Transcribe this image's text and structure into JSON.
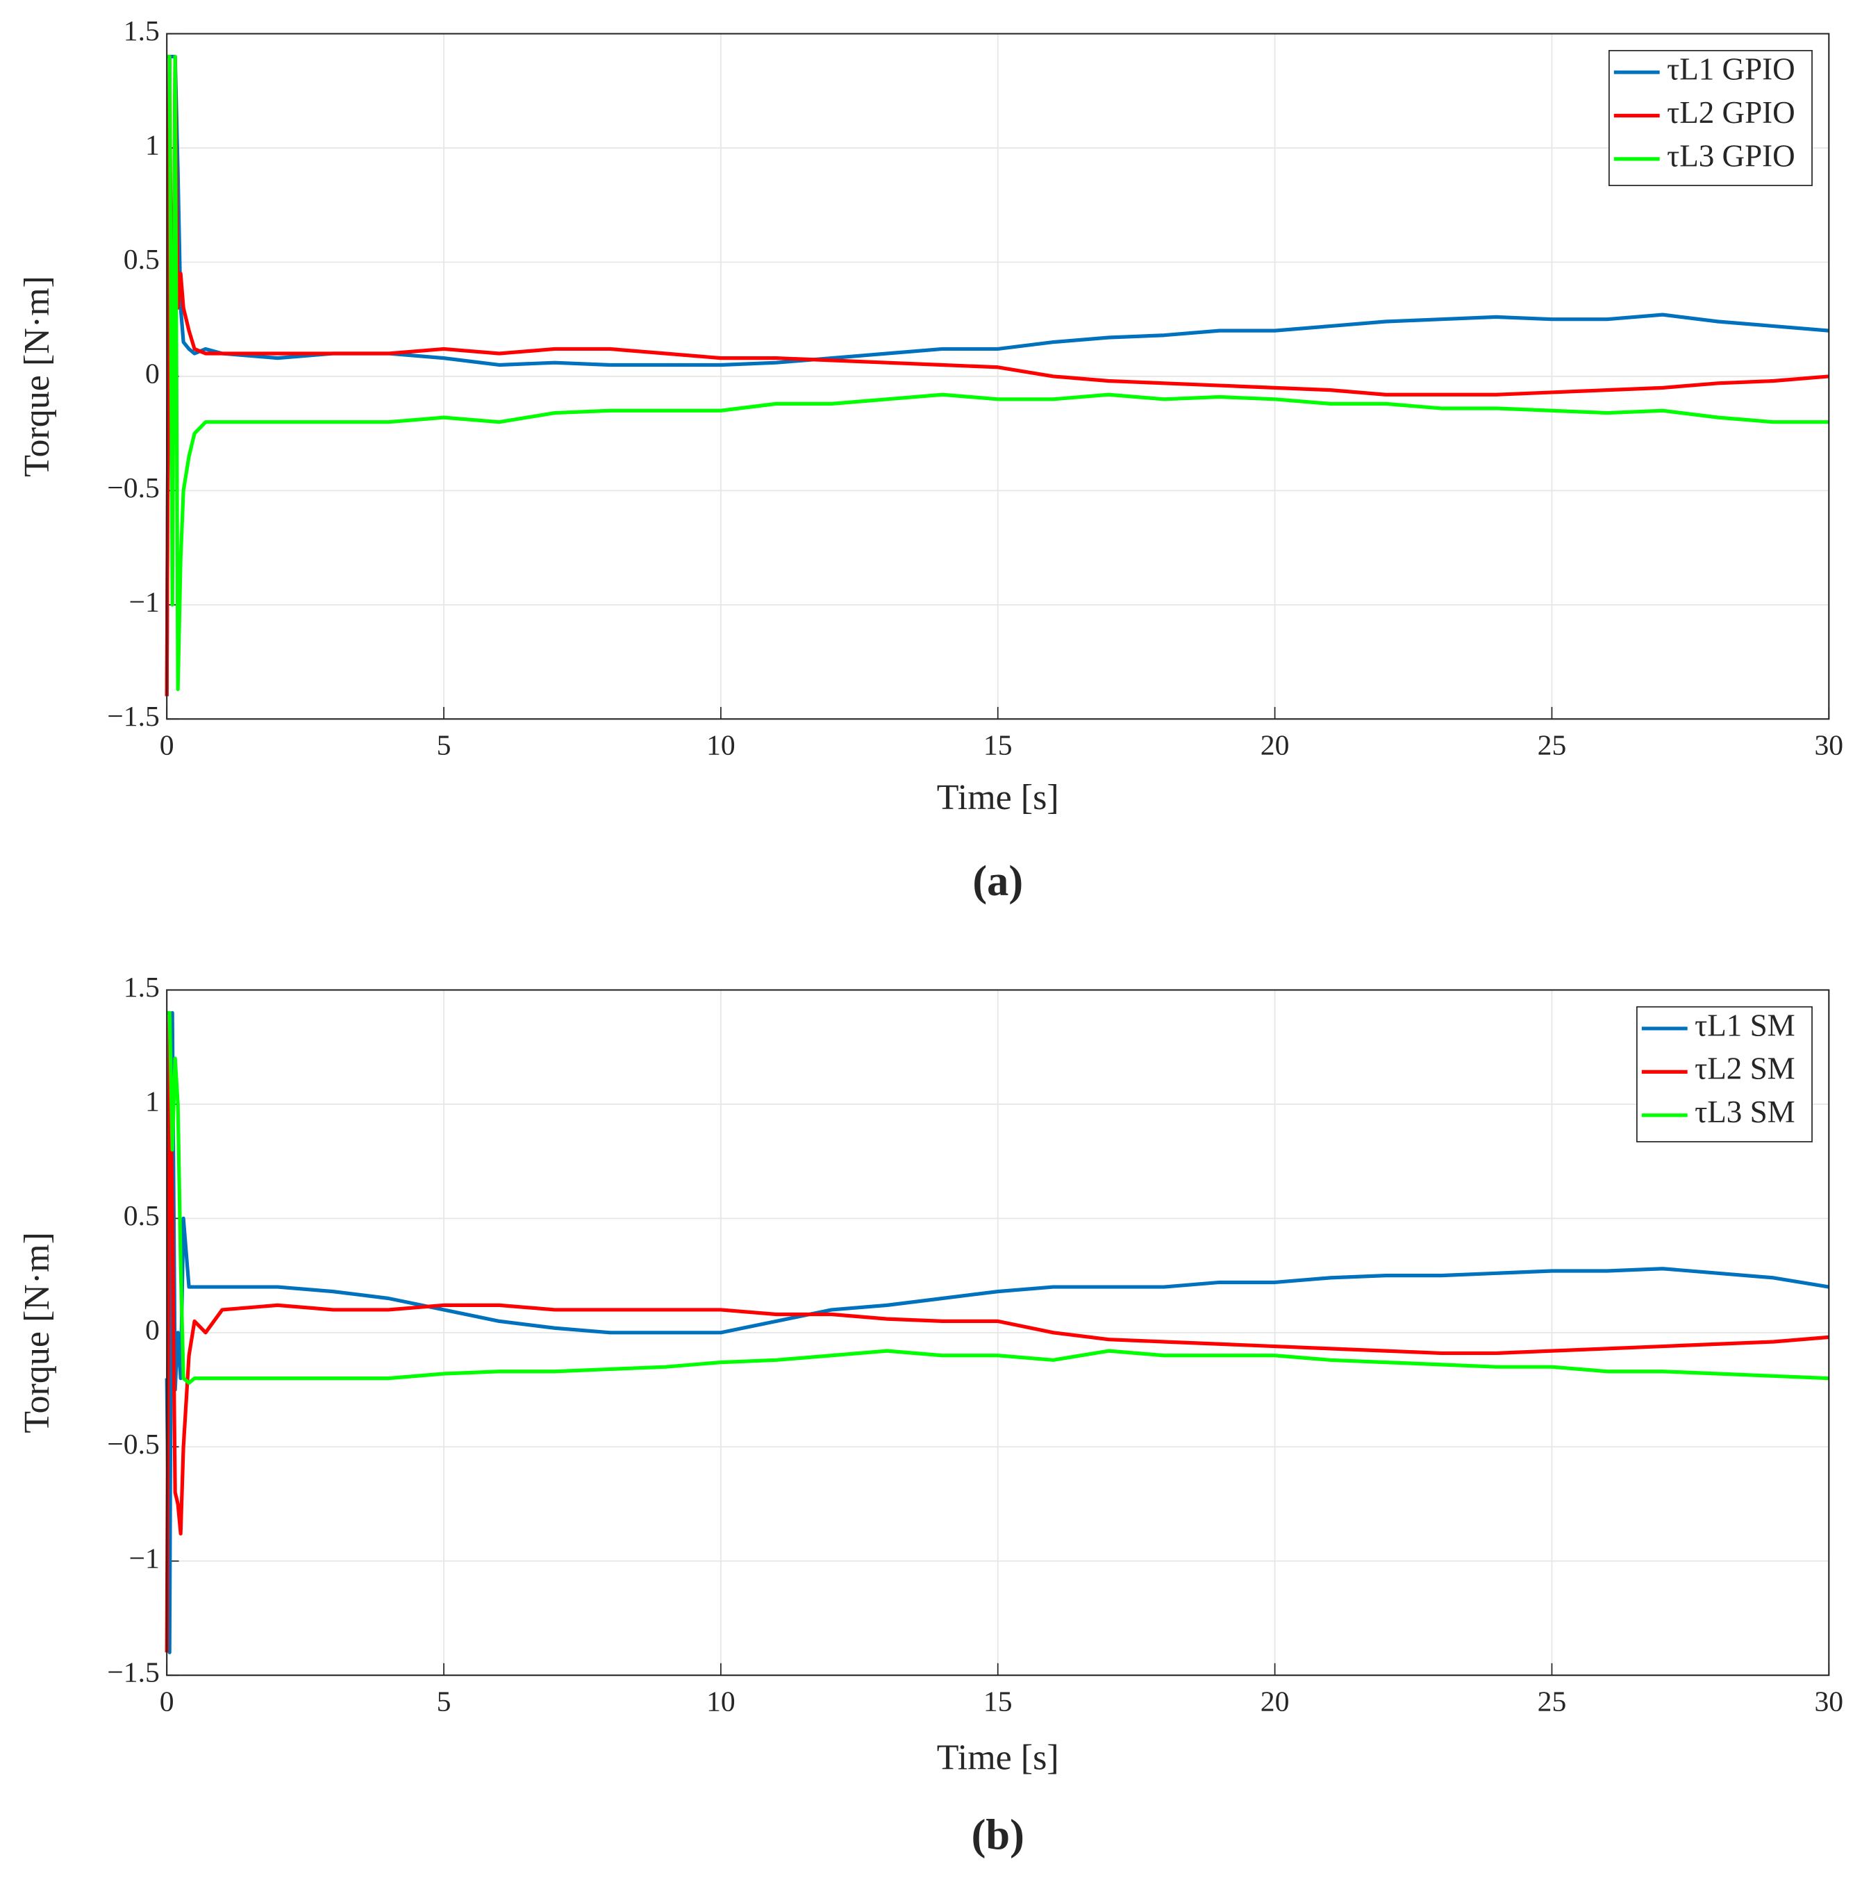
{
  "chart_data": [
    {
      "type": "line",
      "caption": "(a)",
      "xlabel": "Time [s]",
      "ylabel": "Torque [N·m]",
      "x": [
        0,
        0.05,
        0.1,
        0.15,
        0.2,
        0.25,
        0.3,
        0.4,
        0.5,
        0.7,
        1,
        2,
        3,
        4,
        5,
        6,
        7,
        8,
        9,
        10,
        11,
        12,
        13,
        14,
        15,
        16,
        17,
        18,
        19,
        20,
        21,
        22,
        23,
        24,
        25,
        26,
        27,
        28,
        29,
        30
      ],
      "series": [
        {
          "name": "τL1 GPIO",
          "color": "#0072BD",
          "values": [
            -1.4,
            1.4,
            1.4,
            1.4,
            0.9,
            0.3,
            0.15,
            0.12,
            0.1,
            0.12,
            0.1,
            0.08,
            0.1,
            0.1,
            0.08,
            0.05,
            0.06,
            0.05,
            0.05,
            0.05,
            0.06,
            0.08,
            0.1,
            0.12,
            0.12,
            0.15,
            0.17,
            0.18,
            0.2,
            0.2,
            0.22,
            0.24,
            0.25,
            0.26,
            0.25,
            0.25,
            0.27,
            0.24,
            0.22,
            0.2
          ]
        },
        {
          "name": "τL2 GPIO",
          "color": "#FF0000",
          "values": [
            -1.4,
            1.4,
            -0.5,
            1.4,
            0.3,
            0.45,
            0.3,
            0.2,
            0.12,
            0.1,
            0.1,
            0.1,
            0.1,
            0.1,
            0.12,
            0.1,
            0.12,
            0.12,
            0.1,
            0.08,
            0.08,
            0.07,
            0.06,
            0.05,
            0.04,
            0.0,
            -0.02,
            -0.03,
            -0.04,
            -0.05,
            -0.06,
            -0.08,
            -0.08,
            -0.08,
            -0.07,
            -0.06,
            -0.05,
            -0.03,
            -0.02,
            0.0
          ]
        },
        {
          "name": "τL3 GPIO",
          "color": "#00FF00",
          "values": [
            1.4,
            1.4,
            -1.0,
            1.4,
            -1.37,
            -0.8,
            -0.5,
            -0.35,
            -0.25,
            -0.2,
            -0.2,
            -0.2,
            -0.2,
            -0.2,
            -0.18,
            -0.2,
            -0.16,
            -0.15,
            -0.15,
            -0.15,
            -0.12,
            -0.12,
            -0.1,
            -0.08,
            -0.1,
            -0.1,
            -0.08,
            -0.1,
            -0.09,
            -0.1,
            -0.12,
            -0.12,
            -0.14,
            -0.14,
            -0.15,
            -0.16,
            -0.15,
            -0.18,
            -0.2,
            -0.2
          ]
        }
      ],
      "xlim": [
        0,
        30
      ],
      "xticks": [
        0,
        5,
        10,
        15,
        20,
        25,
        30
      ],
      "ylim": [
        -1.5,
        1.5
      ],
      "yticks": [
        {
          "value": -1.5,
          "label": "−1.5"
        },
        {
          "value": -1,
          "label": "−1"
        },
        {
          "value": -0.5,
          "label": "−0.5"
        },
        0,
        0.5,
        1,
        1.5
      ],
      "grid": true,
      "legend": "upper right"
    },
    {
      "type": "line",
      "caption": "(b)",
      "xlabel": "Time [s]",
      "ylabel": "Torque [N·m]",
      "x": [
        0,
        0.05,
        0.1,
        0.15,
        0.2,
        0.25,
        0.3,
        0.4,
        0.5,
        0.7,
        1,
        2,
        3,
        4,
        5,
        6,
        7,
        8,
        9,
        10,
        11,
        12,
        13,
        14,
        15,
        16,
        17,
        18,
        19,
        20,
        21,
        22,
        23,
        24,
        25,
        26,
        27,
        28,
        29,
        30
      ],
      "series": [
        {
          "name": "τL1 SM",
          "color": "#0072BD",
          "values": [
            -0.2,
            -1.4,
            1.4,
            -0.25,
            0.0,
            -0.2,
            0.5,
            0.2,
            0.2,
            0.2,
            0.2,
            0.2,
            0.18,
            0.15,
            0.1,
            0.05,
            0.02,
            0.0,
            0.0,
            0.0,
            0.05,
            0.1,
            0.12,
            0.15,
            0.18,
            0.2,
            0.2,
            0.2,
            0.22,
            0.22,
            0.24,
            0.25,
            0.25,
            0.26,
            0.27,
            0.27,
            0.28,
            0.26,
            0.24,
            0.2
          ]
        },
        {
          "name": "τL2 SM",
          "color": "#FF0000",
          "values": [
            -1.4,
            1.4,
            0.5,
            -0.7,
            -0.75,
            -0.88,
            -0.5,
            -0.1,
            0.05,
            0.0,
            0.1,
            0.12,
            0.1,
            0.1,
            0.12,
            0.12,
            0.1,
            0.1,
            0.1,
            0.1,
            0.08,
            0.08,
            0.06,
            0.05,
            0.05,
            0.0,
            -0.03,
            -0.04,
            -0.05,
            -0.06,
            -0.07,
            -0.08,
            -0.09,
            -0.09,
            -0.08,
            -0.07,
            -0.06,
            -0.05,
            -0.04,
            -0.02
          ]
        },
        {
          "name": "τL3 SM",
          "color": "#00FF00",
          "values": [
            1.4,
            1.4,
            0.8,
            1.2,
            1.0,
            0.3,
            -0.2,
            -0.22,
            -0.2,
            -0.2,
            -0.2,
            -0.2,
            -0.2,
            -0.2,
            -0.18,
            -0.17,
            -0.17,
            -0.16,
            -0.15,
            -0.13,
            -0.12,
            -0.1,
            -0.08,
            -0.1,
            -0.1,
            -0.12,
            -0.08,
            -0.1,
            -0.1,
            -0.1,
            -0.12,
            -0.13,
            -0.14,
            -0.15,
            -0.15,
            -0.17,
            -0.17,
            -0.18,
            -0.19,
            -0.2
          ]
        }
      ],
      "xlim": [
        0,
        30
      ],
      "xticks": [
        0,
        5,
        10,
        15,
        20,
        25,
        30
      ],
      "ylim": [
        -1.5,
        1.5
      ],
      "yticks": [
        {
          "value": -1.5,
          "label": "−1.5"
        },
        {
          "value": -1,
          "label": "−1"
        },
        {
          "value": -0.5,
          "label": "−0.5"
        },
        0,
        0.5,
        1,
        1.5
      ],
      "grid": true,
      "legend": "upper right"
    }
  ]
}
